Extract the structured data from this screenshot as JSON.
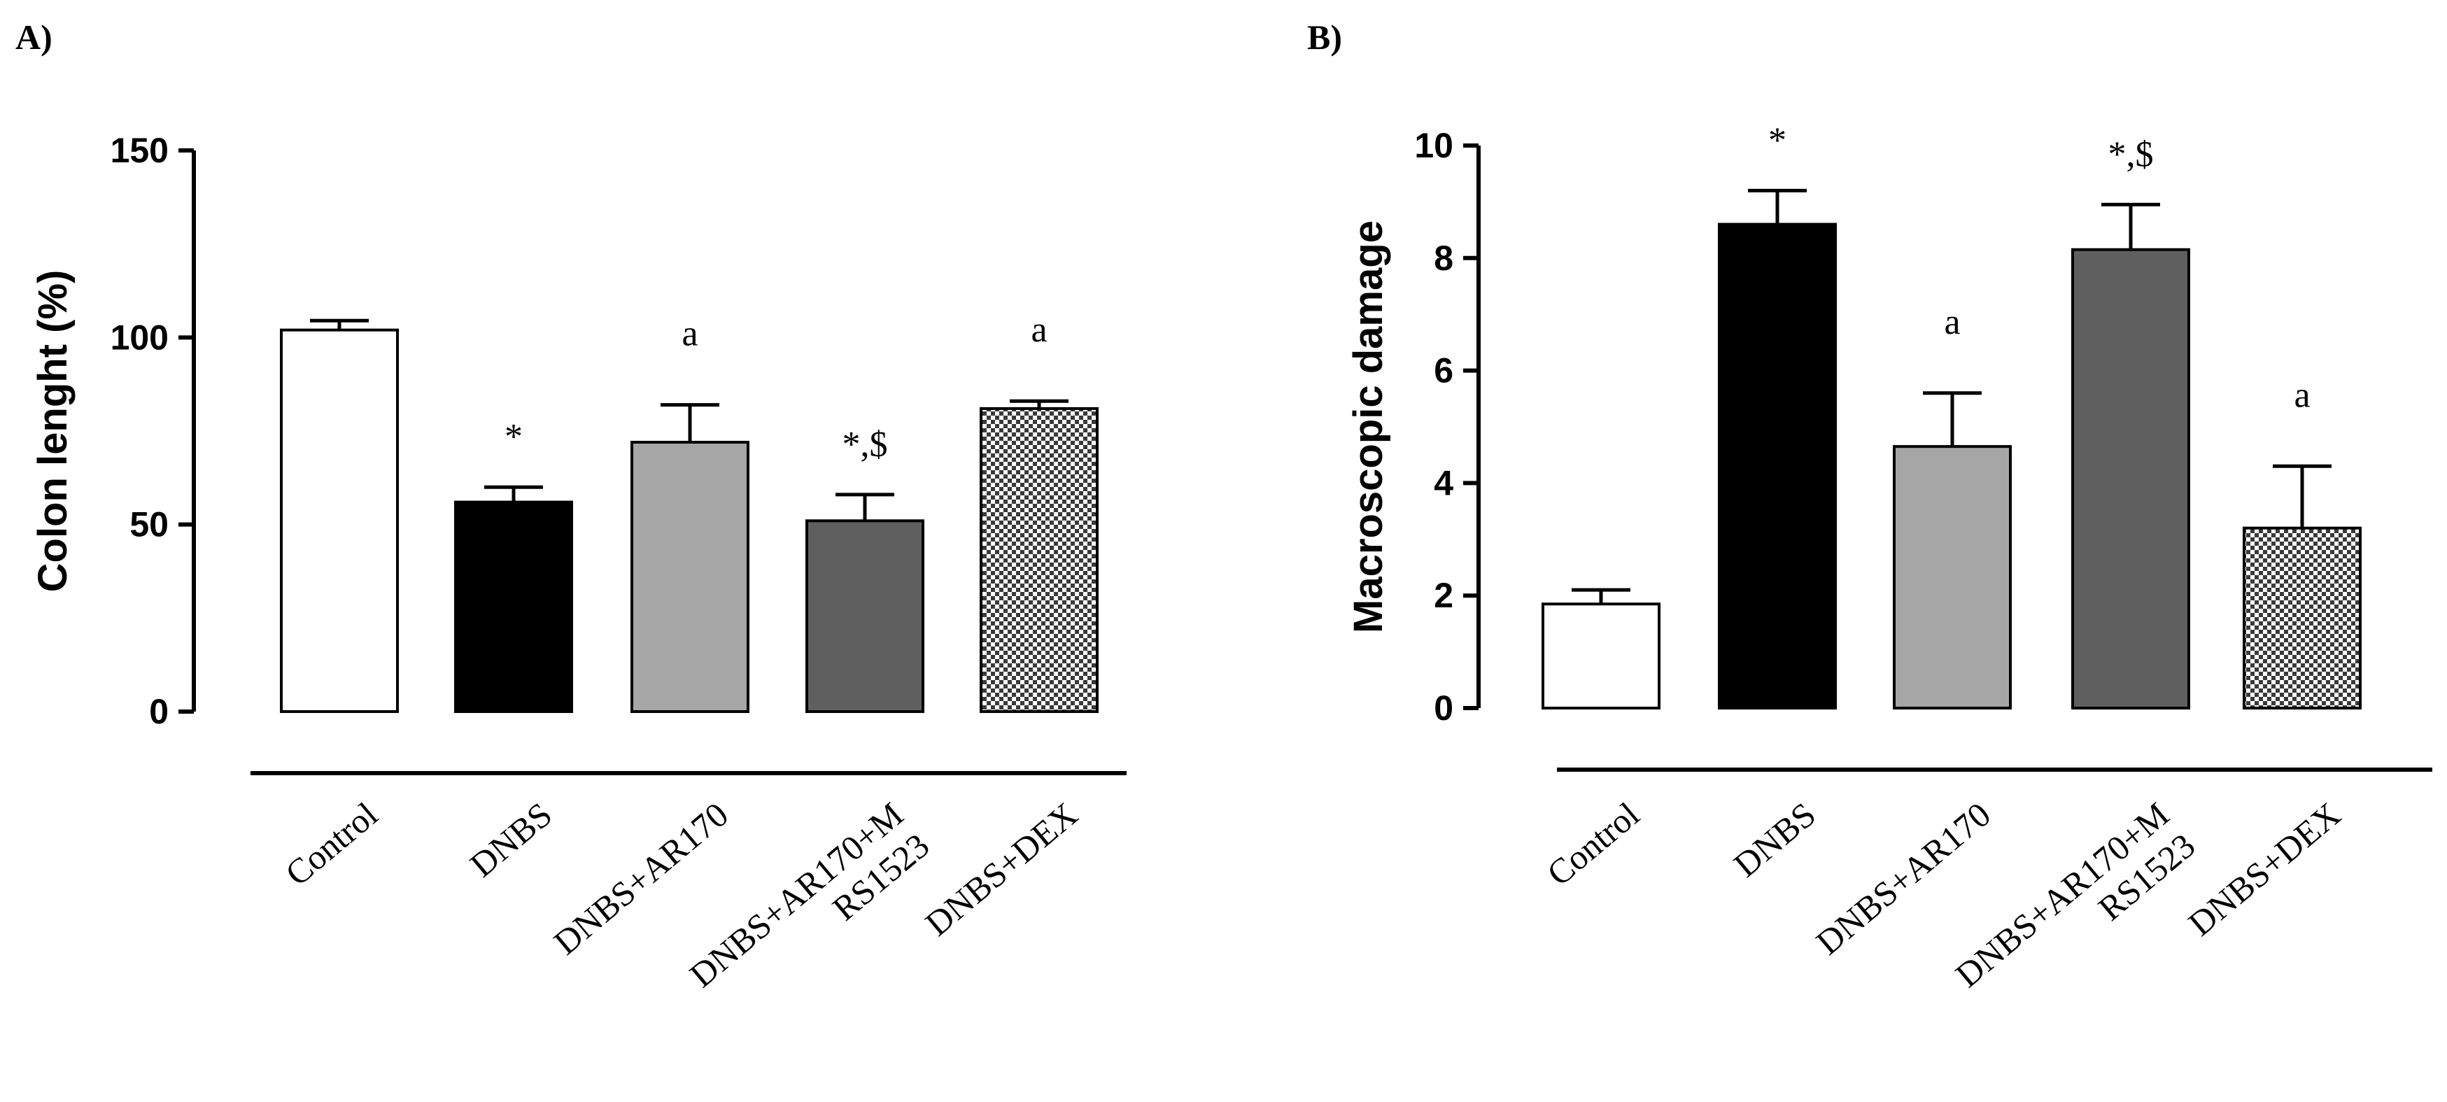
{
  "colors": {
    "control": "#ffffff",
    "dnbs": "#000000",
    "ar170": "#a6a6a6",
    "ar170_mrs": "#5f5f5f",
    "dex_pattern": "checkerboard"
  },
  "chart_data": [
    {
      "panel": "A)",
      "type": "bar",
      "title": "",
      "xlabel": "",
      "ylabel": "Colon lenght (%)",
      "ylim": [
        0,
        150
      ],
      "yticks": [
        0,
        50,
        100,
        150
      ],
      "categories": [
        [
          "Control"
        ],
        [
          "DNBS"
        ],
        [
          "DNBS+AR170"
        ],
        [
          "DNBS+AR170+M",
          "RS1523"
        ],
        [
          "DNBS+DEX"
        ]
      ],
      "values": [
        102,
        56,
        72,
        51,
        81
      ],
      "errors": [
        2.5,
        4,
        10,
        7,
        2
      ],
      "annotations": [
        "",
        "*",
        "a",
        "*,$",
        "a"
      ]
    },
    {
      "panel": "B)",
      "type": "bar",
      "title": "",
      "xlabel": "",
      "ylabel": "Macroscopic damage",
      "ylim": [
        0,
        10
      ],
      "yticks": [
        0,
        2,
        4,
        6,
        8,
        10
      ],
      "categories": [
        [
          "Control"
        ],
        [
          "DNBS"
        ],
        [
          "DNBS+AR170"
        ],
        [
          "DNBS+AR170+M",
          "RS1523"
        ],
        [
          "DNBS+DEX"
        ]
      ],
      "values": [
        1.85,
        8.6,
        4.65,
        8.15,
        3.2
      ],
      "errors": [
        0.25,
        0.6,
        0.95,
        0.8,
        1.1
      ],
      "annotations": [
        "",
        "*",
        "a",
        "*,$",
        "a"
      ]
    }
  ]
}
